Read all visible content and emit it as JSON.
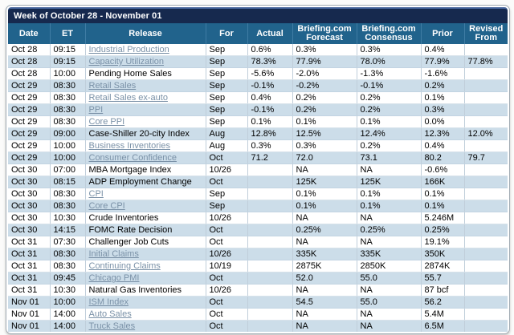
{
  "title": "Week of October 28 - November 01",
  "columns": [
    "Date",
    "ET",
    "Release",
    "For",
    "Actual",
    "Briefing.com Forecast",
    "Briefing.com Consensus",
    "Prior",
    "Revised From"
  ],
  "colors": {
    "title_bar": "#16294e",
    "header_bar": "#21638c",
    "row_alt": "#ccdde9",
    "link": "#7a91a7"
  },
  "rows": [
    {
      "date": "Oct 28",
      "et": "09:15",
      "release": "Industrial Production",
      "link": true,
      "for": "Sep",
      "actual": "0.6%",
      "forecast": "0.3%",
      "consensus": "0.3%",
      "prior": "0.4%",
      "revised": ""
    },
    {
      "date": "Oct 28",
      "et": "09:15",
      "release": "Capacity Utilization",
      "link": true,
      "for": "Sep",
      "actual": "78.3%",
      "forecast": "77.9%",
      "consensus": "78.0%",
      "prior": "77.9%",
      "revised": "77.8%"
    },
    {
      "date": "Oct 28",
      "et": "10:00",
      "release": "Pending Home Sales",
      "link": false,
      "for": "Sep",
      "actual": "-5.6%",
      "forecast": "-2.0%",
      "consensus": "-1.3%",
      "prior": "-1.6%",
      "revised": ""
    },
    {
      "date": "Oct 29",
      "et": "08:30",
      "release": "Retail Sales",
      "link": true,
      "for": "Sep",
      "actual": "-0.1%",
      "forecast": "-0.2%",
      "consensus": "-0.1%",
      "prior": "0.2%",
      "revised": ""
    },
    {
      "date": "Oct 29",
      "et": "08:30",
      "release": "Retail Sales ex-auto",
      "link": true,
      "for": "Sep",
      "actual": "0.4%",
      "forecast": "0.2%",
      "consensus": "0.2%",
      "prior": "0.1%",
      "revised": ""
    },
    {
      "date": "Oct 29",
      "et": "08:30",
      "release": "PPI",
      "link": true,
      "for": "Sep",
      "actual": "-0.1%",
      "forecast": "0.2%",
      "consensus": "0.2%",
      "prior": "0.3%",
      "revised": ""
    },
    {
      "date": "Oct 29",
      "et": "08:30",
      "release": "Core PPI",
      "link": true,
      "for": "Sep",
      "actual": "0.1%",
      "forecast": "0.1%",
      "consensus": "0.1%",
      "prior": "0.0%",
      "revised": ""
    },
    {
      "date": "Oct 29",
      "et": "09:00",
      "release": "Case-Shiller 20-city Index",
      "link": false,
      "for": "Aug",
      "actual": "12.8%",
      "forecast": "12.5%",
      "consensus": "12.4%",
      "prior": "12.3%",
      "revised": "12.0%"
    },
    {
      "date": "Oct 29",
      "et": "10:00",
      "release": "Business Inventories",
      "link": true,
      "for": "Aug",
      "actual": "0.3%",
      "forecast": "0.3%",
      "consensus": "0.2%",
      "prior": "0.4%",
      "revised": ""
    },
    {
      "date": "Oct 29",
      "et": "10:00",
      "release": "Consumer Confidence",
      "link": true,
      "for": "Oct",
      "actual": "71.2",
      "forecast": "72.0",
      "consensus": "73.1",
      "prior": "80.2",
      "revised": "79.7"
    },
    {
      "date": "Oct 30",
      "et": "07:00",
      "release": "MBA Mortgage Index",
      "link": false,
      "for": "10/26",
      "actual": "",
      "forecast": "NA",
      "consensus": "NA",
      "prior": "-0.6%",
      "revised": ""
    },
    {
      "date": "Oct 30",
      "et": "08:15",
      "release": "ADP Employment Change",
      "link": false,
      "for": "Oct",
      "actual": "",
      "forecast": "125K",
      "consensus": "125K",
      "prior": "166K",
      "revised": ""
    },
    {
      "date": "Oct 30",
      "et": "08:30",
      "release": "CPI",
      "link": true,
      "for": "Sep",
      "actual": "",
      "forecast": "0.1%",
      "consensus": "0.1%",
      "prior": "0.1%",
      "revised": ""
    },
    {
      "date": "Oct 30",
      "et": "08:30",
      "release": "Core CPI",
      "link": true,
      "for": "Sep",
      "actual": "",
      "forecast": "0.1%",
      "consensus": "0.1%",
      "prior": "0.1%",
      "revised": ""
    },
    {
      "date": "Oct 30",
      "et": "10:30",
      "release": "Crude Inventories",
      "link": false,
      "for": "10/26",
      "actual": "",
      "forecast": "NA",
      "consensus": "NA",
      "prior": "5.246M",
      "revised": ""
    },
    {
      "date": "Oct 30",
      "et": "14:15",
      "release": "FOMC Rate Decision",
      "link": false,
      "for": "Oct",
      "actual": "",
      "forecast": "0.25%",
      "consensus": "0.25%",
      "prior": "0.25%",
      "revised": ""
    },
    {
      "date": "Oct 31",
      "et": "07:30",
      "release": "Challenger Job Cuts",
      "link": false,
      "for": "Oct",
      "actual": "",
      "forecast": "NA",
      "consensus": "NA",
      "prior": "19.1%",
      "revised": ""
    },
    {
      "date": "Oct 31",
      "et": "08:30",
      "release": "Initial Claims",
      "link": true,
      "for": "10/26",
      "actual": "",
      "forecast": "335K",
      "consensus": "335K",
      "prior": "350K",
      "revised": ""
    },
    {
      "date": "Oct 31",
      "et": "08:30",
      "release": "Continuing Claims",
      "link": true,
      "for": "10/19",
      "actual": "",
      "forecast": "2875K",
      "consensus": "2850K",
      "prior": "2874K",
      "revised": ""
    },
    {
      "date": "Oct 31",
      "et": "09:45",
      "release": "Chicago PMI",
      "link": true,
      "for": "Oct",
      "actual": "",
      "forecast": "52.0",
      "consensus": "55.0",
      "prior": "55.7",
      "revised": ""
    },
    {
      "date": "Oct 31",
      "et": "10:30",
      "release": "Natural Gas Inventories",
      "link": false,
      "for": "10/26",
      "actual": "",
      "forecast": "NA",
      "consensus": "NA",
      "prior": "87 bcf",
      "revised": ""
    },
    {
      "date": "Nov 01",
      "et": "10:00",
      "release": "ISM Index",
      "link": true,
      "for": "Oct",
      "actual": "",
      "forecast": "54.5",
      "consensus": "55.0",
      "prior": "56.2",
      "revised": ""
    },
    {
      "date": "Nov 01",
      "et": "14:00",
      "release": "Auto Sales",
      "link": true,
      "for": "Oct",
      "actual": "",
      "forecast": "NA",
      "consensus": "NA",
      "prior": "5.4M",
      "revised": ""
    },
    {
      "date": "Nov 01",
      "et": "14:00",
      "release": "Truck Sales",
      "link": true,
      "for": "Oct",
      "actual": "",
      "forecast": "NA",
      "consensus": "NA",
      "prior": "6.5M",
      "revised": ""
    }
  ]
}
